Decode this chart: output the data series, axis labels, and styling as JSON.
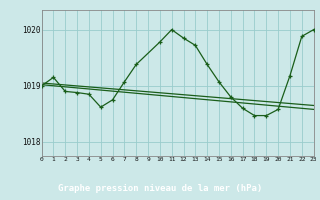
{
  "title": "Graphe pression niveau de la mer (hPa)",
  "bg_color": "#cce8e8",
  "label_bg": "#2d6e2d",
  "label_fg": "#ffffff",
  "grid_color": "#99cccc",
  "line_color": "#1a5e1a",
  "xlim": [
    0,
    23
  ],
  "ylim": [
    1017.75,
    1020.35
  ],
  "yticks": [
    1018,
    1019,
    1020
  ],
  "xticks": [
    0,
    1,
    2,
    3,
    4,
    5,
    6,
    7,
    8,
    9,
    10,
    11,
    12,
    13,
    14,
    15,
    16,
    17,
    18,
    19,
    20,
    21,
    22,
    23
  ],
  "main_x": [
    0,
    1,
    2,
    3,
    4,
    5,
    6,
    7,
    8,
    10,
    11,
    12,
    13,
    14,
    15,
    16,
    17,
    18,
    19,
    20,
    21,
    22,
    23
  ],
  "main_y": [
    1019.0,
    1019.15,
    1018.9,
    1018.88,
    1018.85,
    1018.62,
    1018.75,
    1019.07,
    1019.38,
    1019.78,
    1020.0,
    1019.85,
    1019.72,
    1019.38,
    1019.07,
    1018.8,
    1018.6,
    1018.47,
    1018.47,
    1018.58,
    1019.18,
    1019.88,
    1020.0
  ],
  "trend1_x": [
    0,
    23
  ],
  "trend1_y": [
    1019.05,
    1018.65
  ],
  "trend2_x": [
    0,
    23
  ],
  "trend2_y": [
    1019.02,
    1018.58
  ]
}
